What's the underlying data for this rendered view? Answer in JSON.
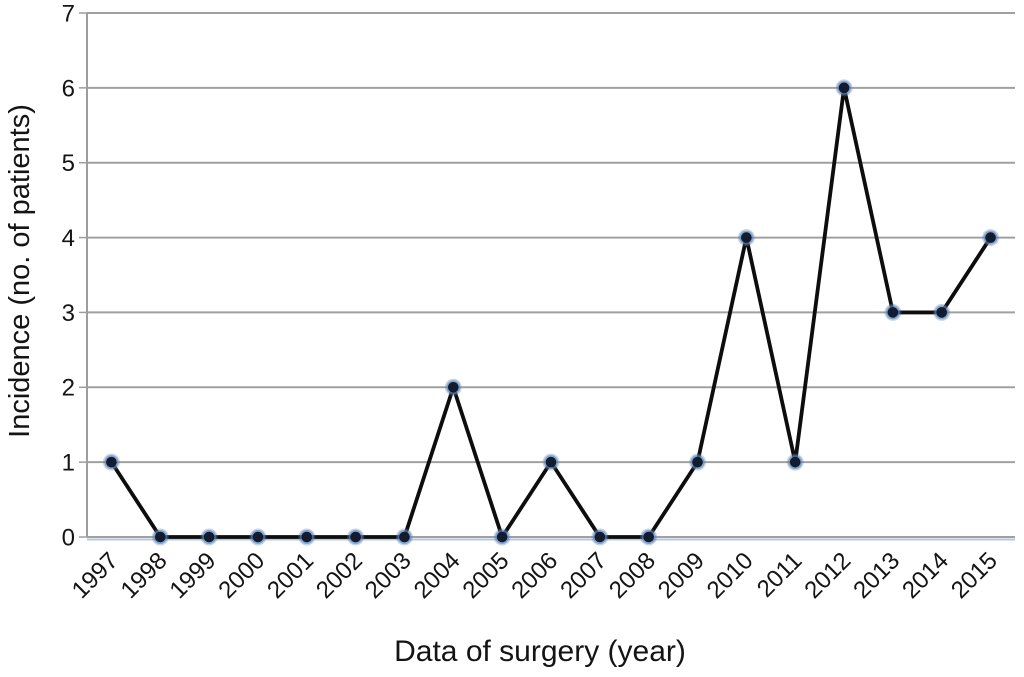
{
  "chart_data": {
    "type": "line",
    "title": "",
    "xlabel": "Data of surgery (year)",
    "ylabel": "Incidence (no. of patients)",
    "categories": [
      "1997",
      "1998",
      "1999",
      "2000",
      "2001",
      "2002",
      "2003",
      "2004",
      "2005",
      "2006",
      "2007",
      "2008",
      "2009",
      "2010",
      "2011",
      "2012",
      "2013",
      "2014",
      "2015"
    ],
    "values": [
      1,
      0,
      0,
      0,
      0,
      0,
      0,
      2,
      0,
      1,
      0,
      0,
      1,
      4,
      1,
      6,
      3,
      3,
      4
    ],
    "ylim": [
      0,
      7
    ],
    "yticks": [
      0,
      1,
      2,
      3,
      4,
      5,
      6,
      7
    ],
    "grid": true,
    "legend": "none",
    "colors": {
      "line": "#0d0d0d",
      "marker_core": "#121c31",
      "marker_halo": "#5d84b8",
      "gridline": "#a0a0a0",
      "axis": "#9d9d9d",
      "zero_axis": "#b3c9e2",
      "text": "#141414",
      "background": "#ffffff"
    }
  }
}
